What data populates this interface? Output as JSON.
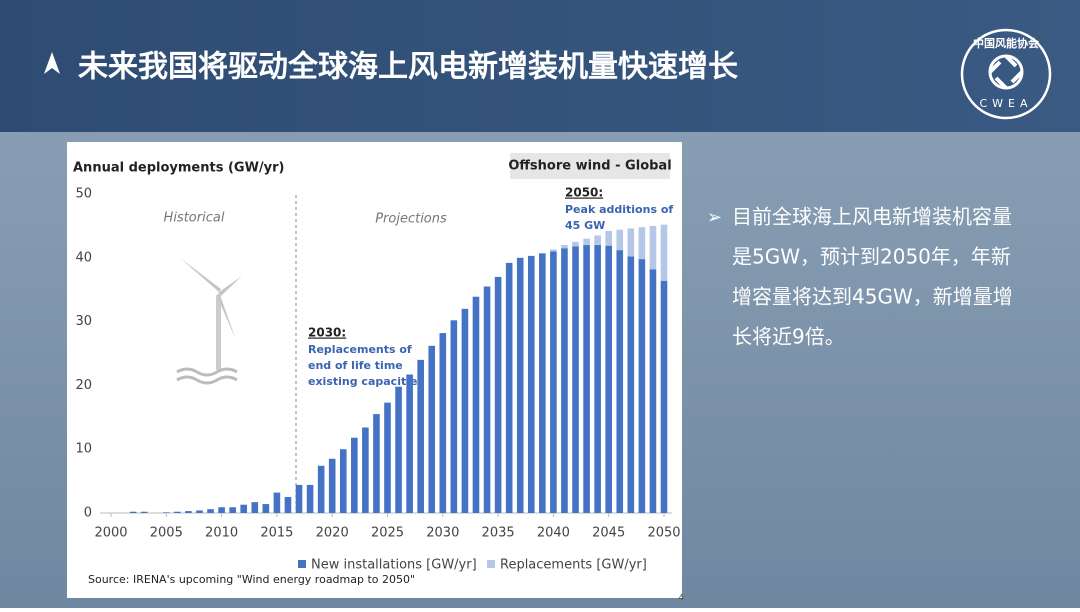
{
  "slide": {
    "title": "未来我国将驱动全球海上风电新增装机量快速增长",
    "logo_cn": "中国风能协会",
    "logo_en": "CWEA",
    "bullet": [
      "目前全球海上风电新增装机容量",
      "是5GW，预计到2050年，年新",
      "增容量将达到45GW，新增量增",
      "长将近9倍。"
    ],
    "page_number": "4"
  },
  "chart_data": {
    "type": "stacked-bar",
    "title": "Annual deployments (GW/yr)",
    "subtitle": "Offshore wind - Global",
    "annotations": {
      "historical": "Historical",
      "projections": "Projections",
      "a2030_head": "2030:",
      "a2030_lines": [
        "Replacements of",
        "end of life time",
        "existing capacities"
      ],
      "a2050_head": "2050:",
      "a2050_lines": [
        "Peak additions of",
        "45 GW"
      ]
    },
    "source": "Source:  IRENA's upcoming \"Wind energy roadmap to 2050\"",
    "x": [
      2000,
      2001,
      2002,
      2003,
      2004,
      2005,
      2006,
      2007,
      2008,
      2009,
      2010,
      2011,
      2012,
      2013,
      2014,
      2015,
      2016,
      2017,
      2018,
      2019,
      2020,
      2021,
      2022,
      2023,
      2024,
      2025,
      2026,
      2027,
      2028,
      2029,
      2030,
      2031,
      2032,
      2033,
      2034,
      2035,
      2036,
      2037,
      2038,
      2039,
      2040,
      2041,
      2042,
      2043,
      2044,
      2045,
      2046,
      2047,
      2048,
      2049,
      2050
    ],
    "series": [
      {
        "name": "New installations [GW/yr]",
        "color": "#4472c4",
        "values": [
          0,
          0,
          0.2,
          0.2,
          0,
          0.1,
          0.2,
          0.3,
          0.4,
          0.6,
          0.9,
          0.9,
          1.3,
          1.7,
          1.4,
          3.2,
          2.5,
          4.4,
          4.4,
          7.4,
          8.5,
          10,
          11.8,
          13.4,
          15.5,
          17.3,
          19.8,
          21.7,
          24,
          26.2,
          28.2,
          30.2,
          32,
          33.9,
          35.5,
          37,
          39.2,
          40,
          40.3,
          40.7,
          41,
          41.5,
          41.8,
          42,
          42,
          41.9,
          41.2,
          40.2,
          39.8,
          38.2,
          36.4
        ]
      },
      {
        "name": "Replacements [GW/yr]",
        "color": "#b4c7e7",
        "values": [
          0,
          0,
          0,
          0,
          0,
          0,
          0,
          0,
          0,
          0,
          0,
          0,
          0,
          0,
          0,
          0,
          0,
          0,
          0,
          0,
          0,
          0,
          0,
          0,
          0,
          0,
          0,
          0,
          0,
          0,
          0,
          0,
          0,
          0,
          0,
          0,
          0,
          0,
          0,
          0,
          0.3,
          0.5,
          0.7,
          1,
          1.5,
          2.3,
          3.2,
          4.4,
          5,
          6.8,
          8.8
        ]
      }
    ],
    "xlim": [
      2000,
      2050
    ],
    "xticks": [
      2000,
      2005,
      2010,
      2015,
      2020,
      2025,
      2030,
      2035,
      2040,
      2045,
      2050
    ],
    "ylim": [
      0,
      50
    ],
    "yticks": [
      0,
      10,
      20,
      30,
      40,
      50
    ],
    "grid": false
  }
}
